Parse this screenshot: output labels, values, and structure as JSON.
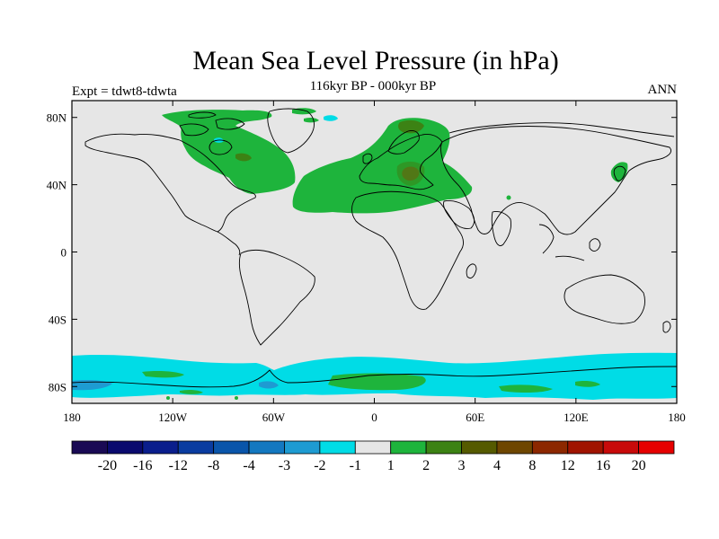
{
  "title": "Mean Sea Level Pressure (in hPa)",
  "subtitle": "116kyr BP - 000kyr BP",
  "left_label": "Expt = tdwt8-tdwta",
  "right_label": "ANN",
  "map": {
    "lon_range": [
      -180,
      180
    ],
    "lat_range": [
      -90,
      90
    ],
    "background_color": "#e6e6e6",
    "coastline_color": "#000000"
  },
  "lat_ticks": [
    {
      "value": 80,
      "label": "80N"
    },
    {
      "value": 40,
      "label": "40N"
    },
    {
      "value": 0,
      "label": "0"
    },
    {
      "value": -40,
      "label": "40S"
    },
    {
      "value": -80,
      "label": "80S"
    }
  ],
  "lon_ticks": [
    {
      "value": -180,
      "label": "180"
    },
    {
      "value": -120,
      "label": "120W"
    },
    {
      "value": -60,
      "label": "60W"
    },
    {
      "value": 0,
      "label": "0"
    },
    {
      "value": 60,
      "label": "60E"
    },
    {
      "value": 120,
      "label": "120E"
    },
    {
      "value": 180,
      "label": "180"
    }
  ],
  "colorbar": {
    "colors": [
      "#1a0a54",
      "#0a0a6e",
      "#0a1e8c",
      "#0a3ca0",
      "#0a55aa",
      "#1478c0",
      "#1e9bd2",
      "#00dce6",
      "#e6e6e6",
      "#1eb43c",
      "#3c8214",
      "#555a00",
      "#6e4600",
      "#8c2800",
      "#a01400",
      "#c80a0a",
      "#e60000"
    ],
    "labels": [
      "-20",
      "-16",
      "-12",
      "-8",
      "-4",
      "-3",
      "-2",
      "-1",
      "1",
      "2",
      "3",
      "4",
      "8",
      "12",
      "16",
      "20"
    ]
  },
  "field_colors": {
    "green": "#1eb43c",
    "dark_green": "#3c8214",
    "olive": "#6b6a1a",
    "cyan": "#00dce6",
    "blue": "#1e9bd2"
  }
}
